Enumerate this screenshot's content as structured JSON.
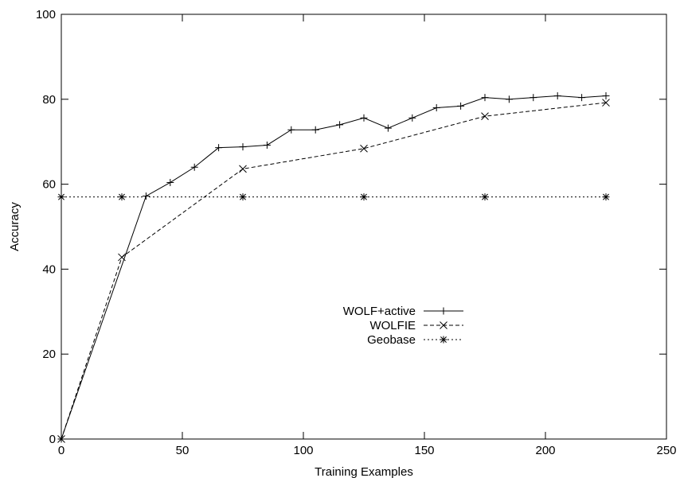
{
  "chart_data": {
    "type": "line",
    "title": "",
    "xlabel": "Training Examples",
    "ylabel": "Accuracy",
    "xlim": [
      0,
      250
    ],
    "ylim": [
      0,
      100
    ],
    "xticks": [
      0,
      50,
      100,
      150,
      200,
      250
    ],
    "yticks": [
      0,
      20,
      40,
      60,
      80,
      100
    ],
    "grid": false,
    "legend_position": "center-right",
    "series": [
      {
        "name": "WOLF+active",
        "marker": "plus",
        "dash": "solid",
        "x": [
          0,
          35,
          45,
          55,
          65,
          75,
          85,
          95,
          105,
          115,
          125,
          135,
          145,
          155,
          165,
          175,
          185,
          195,
          205,
          215,
          225
        ],
        "values": [
          0,
          57.2,
          60.4,
          64,
          68.6,
          68.8,
          69.2,
          72.8,
          72.8,
          74,
          75.6,
          73.2,
          75.6,
          78,
          78.4,
          80.4,
          80,
          80.4,
          80.8,
          80.4,
          80.8
        ]
      },
      {
        "name": "WOLFIE",
        "marker": "cross",
        "dash": "dashed",
        "x": [
          0,
          25,
          75,
          125,
          175,
          225
        ],
        "values": [
          0,
          42.8,
          63.6,
          68.4,
          76,
          79.2
        ]
      },
      {
        "name": "Geobase",
        "marker": "star",
        "dash": "dotted",
        "x": [
          0,
          25,
          75,
          125,
          175,
          225
        ],
        "values": [
          57,
          57,
          57,
          57,
          57,
          57
        ]
      }
    ]
  }
}
